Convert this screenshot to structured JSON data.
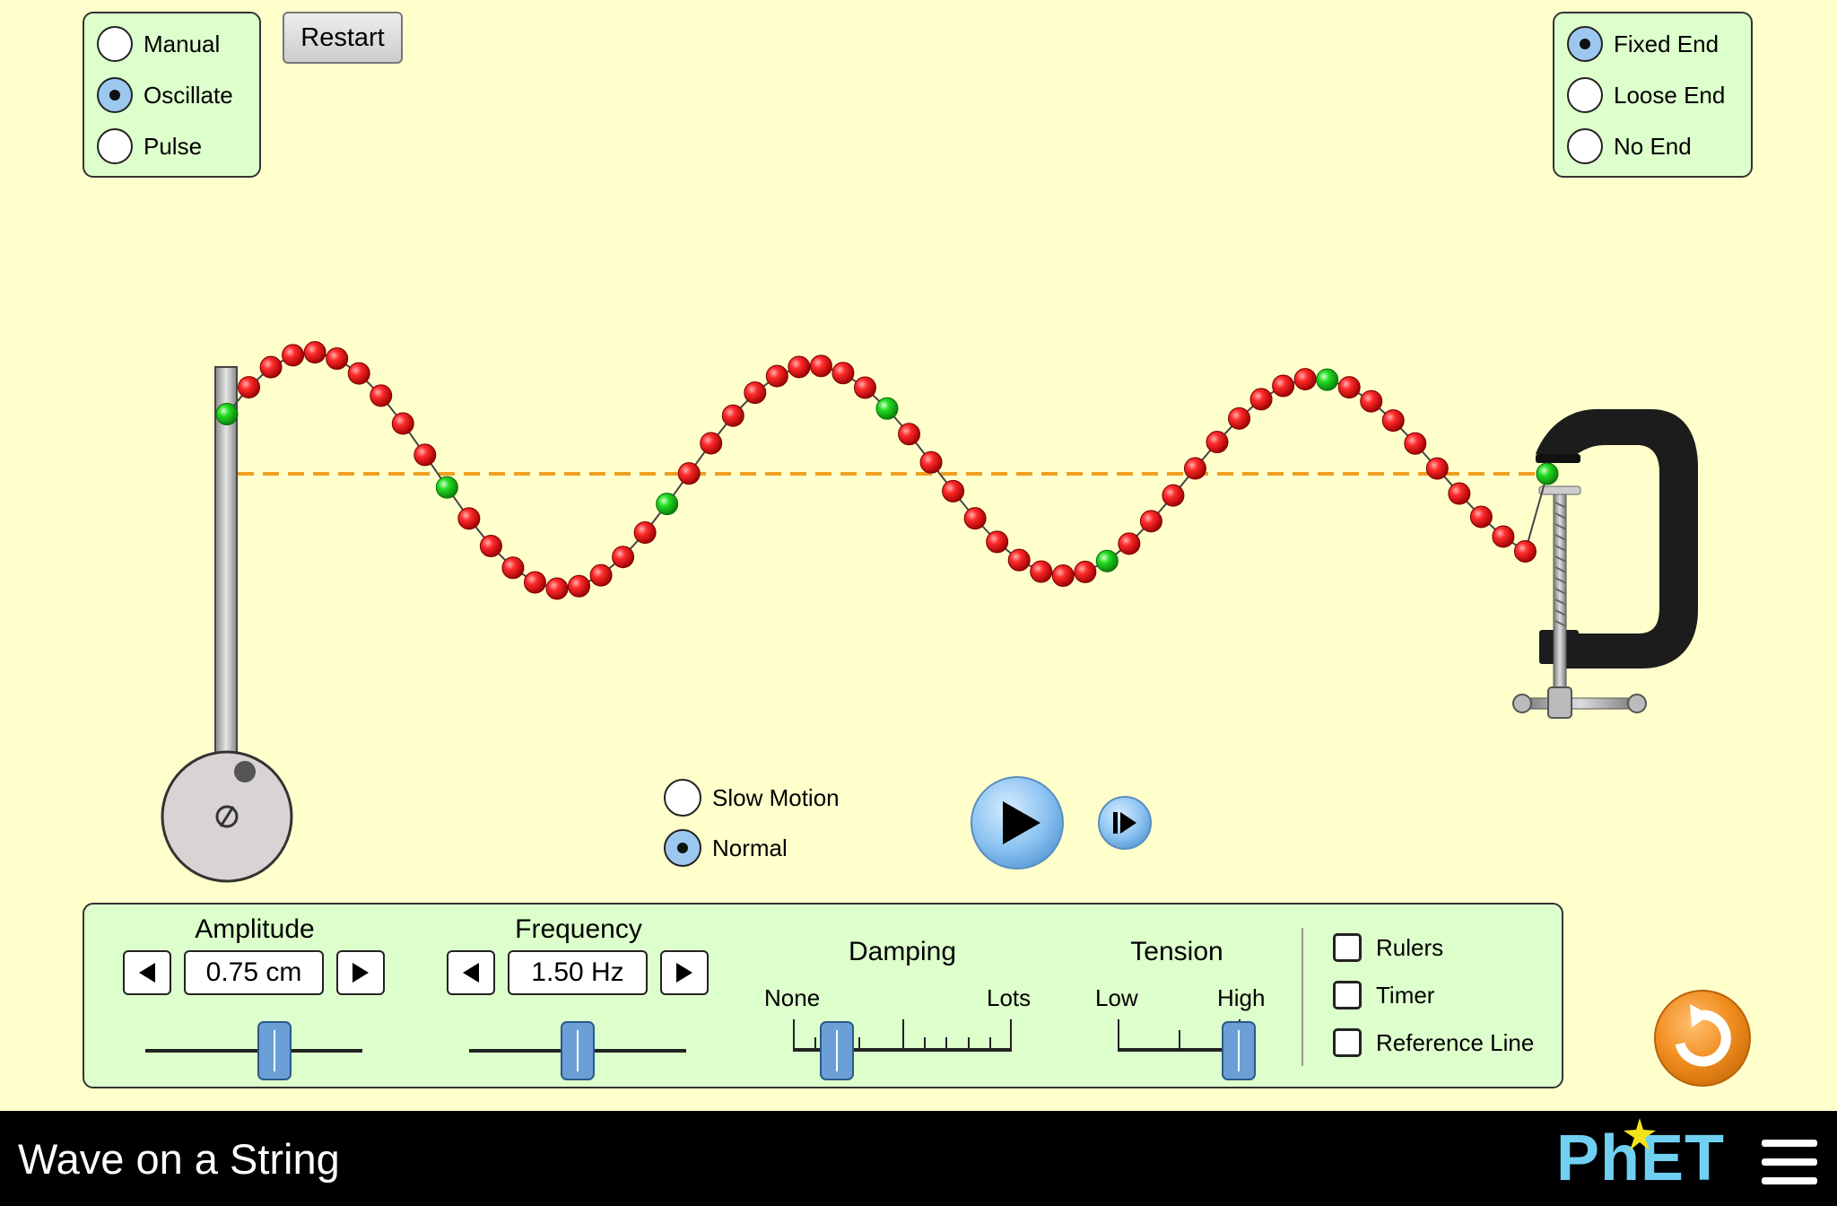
{
  "app": {
    "title": "Wave on a String",
    "brand": "PhET"
  },
  "mode_panel": {
    "options": [
      {
        "label": "Manual",
        "selected": false
      },
      {
        "label": "Oscillate",
        "selected": true
      },
      {
        "label": "Pulse",
        "selected": false
      }
    ]
  },
  "restart_label": "Restart",
  "end_panel": {
    "options": [
      {
        "label": "Fixed End",
        "selected": true
      },
      {
        "label": "Loose End",
        "selected": false
      },
      {
        "label": "No End",
        "selected": false
      }
    ]
  },
  "speed": {
    "options": [
      {
        "label": "Slow Motion",
        "selected": false
      },
      {
        "label": "Normal",
        "selected": true
      }
    ]
  },
  "controls": {
    "amplitude": {
      "label": "Amplitude",
      "value": "0.75 cm",
      "slider_fraction": 0.6
    },
    "frequency": {
      "label": "Frequency",
      "value": "1.50 Hz",
      "slider_fraction": 0.5
    },
    "damping": {
      "label": "Damping",
      "min_label": "None",
      "max_label": "Lots",
      "slider_fraction": 0.2
    },
    "tension": {
      "label": "Tension",
      "min_label": "Low",
      "max_label": "High",
      "slider_fraction": 1.0
    }
  },
  "options": {
    "rulers": "Rulers",
    "timer": "Timer",
    "reference_line": "Reference Line"
  },
  "colors": {
    "background": "#ffffcc",
    "panel": "#ddffcc",
    "bead": "#ee1111",
    "bead_marker": "#22cc22",
    "accent": "#f08c1e"
  }
}
